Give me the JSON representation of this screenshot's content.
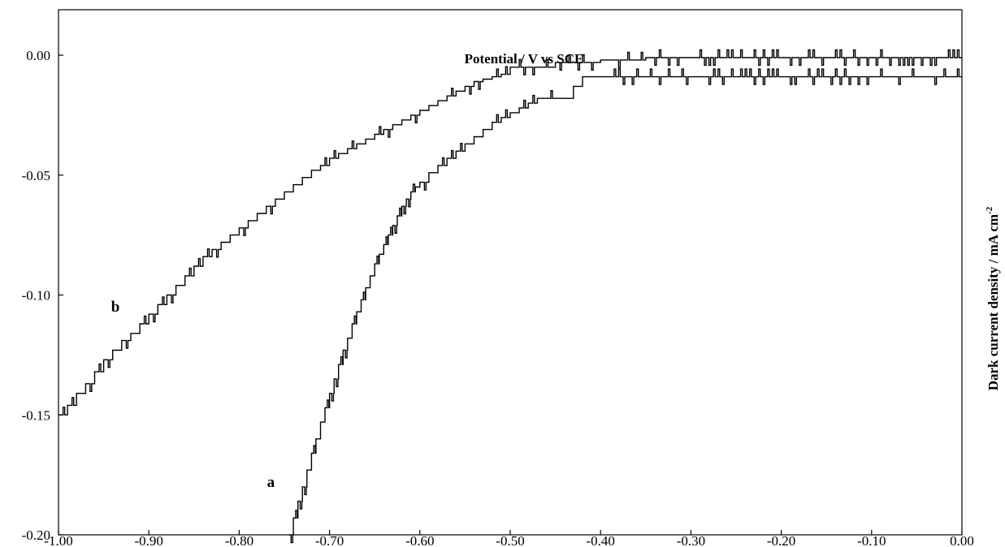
{
  "chart_data": {
    "type": "line",
    "title": "",
    "xlabel": "Potential / V vs SCE",
    "ylabel": "Dark current density / mA cm",
    "ylabel_superscript": "-2",
    "xlim": [
      -1.0,
      0.0
    ],
    "ylim": [
      -0.2,
      0.0
    ],
    "x_ticks": [
      "-1.00",
      "-0.90",
      "-0.80",
      "-0.70",
      "-0.60",
      "-0.50",
      "-0.40",
      "-0.30",
      "-0.20",
      "-0.10",
      "0.00"
    ],
    "y_ticks": [
      "0.00",
      "-0.05",
      "-0.10",
      "-0.15",
      "-0.20"
    ],
    "grid": false,
    "legend": "none",
    "series": [
      {
        "name": "a",
        "label_at": [
          -0.765,
          -0.18
        ],
        "x": [
          -0.745,
          -0.74,
          -0.735,
          -0.73,
          -0.725,
          -0.72,
          -0.715,
          -0.71,
          -0.705,
          -0.7,
          -0.695,
          -0.69,
          -0.685,
          -0.68,
          -0.675,
          -0.67,
          -0.665,
          -0.66,
          -0.655,
          -0.65,
          -0.645,
          -0.64,
          -0.635,
          -0.63,
          -0.625,
          -0.62,
          -0.615,
          -0.61,
          -0.605,
          -0.6,
          -0.59,
          -0.58,
          -0.57,
          -0.56,
          -0.55,
          -0.54,
          -0.53,
          -0.52,
          -0.51,
          -0.5,
          -0.49,
          -0.48,
          -0.47,
          -0.46,
          -0.45,
          -0.44,
          -0.43,
          -0.42,
          -0.4,
          -0.35,
          -0.3,
          -0.25,
          -0.2,
          -0.15,
          -0.1,
          -0.05,
          0.0
        ],
        "y": [
          -0.2,
          -0.193,
          -0.186,
          -0.18,
          -0.173,
          -0.166,
          -0.16,
          -0.153,
          -0.147,
          -0.141,
          -0.135,
          -0.129,
          -0.123,
          -0.118,
          -0.112,
          -0.107,
          -0.102,
          -0.097,
          -0.092,
          -0.087,
          -0.083,
          -0.079,
          -0.075,
          -0.071,
          -0.067,
          -0.063,
          -0.06,
          -0.057,
          -0.055,
          -0.053,
          -0.049,
          -0.046,
          -0.043,
          -0.04,
          -0.037,
          -0.034,
          -0.031,
          -0.028,
          -0.026,
          -0.024,
          -0.022,
          -0.02,
          -0.018,
          -0.018,
          -0.018,
          -0.018,
          -0.013,
          -0.009,
          -0.009,
          -0.009,
          -0.009,
          -0.009,
          -0.009,
          -0.009,
          -0.009,
          -0.009,
          -0.009
        ]
      },
      {
        "name": "b",
        "label_at": [
          -0.937,
          -0.107
        ],
        "x": [
          -1.0,
          -0.99,
          -0.98,
          -0.97,
          -0.96,
          -0.95,
          -0.94,
          -0.93,
          -0.92,
          -0.91,
          -0.9,
          -0.89,
          -0.88,
          -0.87,
          -0.86,
          -0.85,
          -0.84,
          -0.83,
          -0.82,
          -0.81,
          -0.8,
          -0.79,
          -0.78,
          -0.77,
          -0.76,
          -0.75,
          -0.74,
          -0.73,
          -0.72,
          -0.71,
          -0.7,
          -0.69,
          -0.68,
          -0.67,
          -0.66,
          -0.65,
          -0.64,
          -0.63,
          -0.62,
          -0.61,
          -0.6,
          -0.59,
          -0.58,
          -0.57,
          -0.56,
          -0.55,
          -0.54,
          -0.53,
          -0.52,
          -0.51,
          -0.5,
          -0.45,
          -0.4,
          -0.35,
          -0.3,
          -0.25,
          -0.2,
          -0.15,
          -0.1,
          -0.05,
          0.0
        ],
        "y": [
          -0.15,
          -0.146,
          -0.141,
          -0.137,
          -0.132,
          -0.127,
          -0.123,
          -0.119,
          -0.116,
          -0.112,
          -0.108,
          -0.104,
          -0.1,
          -0.096,
          -0.092,
          -0.088,
          -0.084,
          -0.081,
          -0.078,
          -0.075,
          -0.072,
          -0.069,
          -0.066,
          -0.063,
          -0.06,
          -0.057,
          -0.054,
          -0.051,
          -0.048,
          -0.046,
          -0.043,
          -0.041,
          -0.039,
          -0.037,
          -0.035,
          -0.033,
          -0.031,
          -0.029,
          -0.027,
          -0.025,
          -0.023,
          -0.021,
          -0.019,
          -0.017,
          -0.015,
          -0.013,
          -0.011,
          -0.01,
          -0.009,
          -0.008,
          -0.005,
          -0.003,
          -0.002,
          -0.001,
          -0.001,
          -0.001,
          -0.001,
          -0.001,
          -0.001,
          -0.001,
          -0.001
        ]
      }
    ]
  }
}
